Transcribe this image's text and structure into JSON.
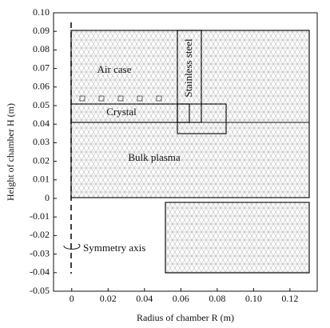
{
  "chart_data": {
    "type": "mesh",
    "xlabel": "Radius of chamber R (m)",
    "ylabel": "Height of chamber H (m)",
    "xlim": [
      -0.01,
      0.135
    ],
    "ylim": [
      -0.05,
      0.1
    ],
    "xticks": [
      0,
      0.02,
      0.04,
      0.06,
      0.08,
      {
        "value": 0.1,
        "label": "0.10"
      },
      0.12
    ],
    "yticks": [
      {
        "value": 0.1,
        "label": "0.10"
      },
      0.09,
      0.08,
      0.07,
      0.06,
      0.05,
      0.04,
      0.03,
      0.02,
      0.01,
      0,
      -0.01,
      -0.02,
      -0.03,
      -0.04,
      -0.05
    ],
    "annotations": [
      "Air case",
      "Stainless steel",
      "Crystal",
      "Bulk plasma",
      "Symmetry axis"
    ]
  }
}
